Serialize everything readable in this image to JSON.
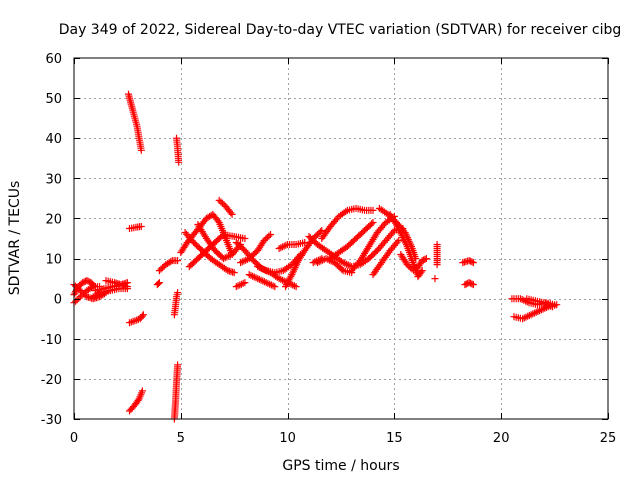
{
  "chart_data": {
    "type": "scatter",
    "title": "Day 349 of 2022, Sidereal Day-to-day VTEC variation (SDTVAR) for receiver cibg",
    "xlabel": "GPS time / hours",
    "ylabel": "SDTVAR / TECUs",
    "xlim": [
      0,
      25
    ],
    "ylim": [
      -30,
      60
    ],
    "xticks": [
      0,
      5,
      10,
      15,
      20,
      25
    ],
    "yticks": [
      -30,
      -20,
      -10,
      0,
      10,
      20,
      30,
      40,
      50,
      60
    ],
    "grid": true,
    "marker": "+",
    "colors": {
      "series": "#ff0000",
      "grid": "#a0a0a0",
      "axis": "#000000"
    },
    "series": [
      {
        "name": "SDTVAR",
        "segments": [
          [
            [
              0.0,
              1.0
            ],
            [
              0.2,
              3.0
            ],
            [
              0.4,
              4.0
            ],
            [
              0.6,
              4.5
            ],
            [
              0.8,
              4.0
            ],
            [
              1.0,
              3.0
            ]
          ],
          [
            [
              0.0,
              3.5
            ],
            [
              0.3,
              2.0
            ],
            [
              0.6,
              0.5
            ],
            [
              0.9,
              0.0
            ],
            [
              1.2,
              0.5
            ],
            [
              1.5,
              1.5
            ]
          ],
          [
            [
              0.0,
              -1.0
            ],
            [
              0.3,
              0.5
            ],
            [
              0.6,
              2.0
            ],
            [
              0.9,
              3.0
            ],
            [
              1.2,
              3.0
            ]
          ],
          [
            [
              1.0,
              2.0
            ],
            [
              1.4,
              2.5
            ],
            [
              1.8,
              3.0
            ],
            [
              2.2,
              3.5
            ],
            [
              2.5,
              3.0
            ]
          ],
          [
            [
              1.5,
              4.5
            ],
            [
              1.9,
              4.0
            ],
            [
              2.2,
              3.5
            ],
            [
              2.5,
              4.0
            ]
          ],
          [
            [
              0.9,
              0.5
            ],
            [
              1.3,
              1.5
            ],
            [
              1.7,
              2.0
            ],
            [
              2.1,
              2.5
            ],
            [
              2.5,
              2.5
            ]
          ],
          [
            [
              2.55,
              51.0
            ],
            [
              2.75,
              47.0
            ],
            [
              2.95,
              43.0
            ],
            [
              3.15,
              37.0
            ]
          ],
          [
            [
              2.6,
              17.5
            ],
            [
              2.9,
              17.8
            ],
            [
              3.15,
              18.0
            ]
          ],
          [
            [
              2.6,
              -6.0
            ],
            [
              2.85,
              -5.5
            ],
            [
              3.1,
              -5.0
            ],
            [
              3.25,
              -4.0
            ]
          ],
          [
            [
              2.6,
              -28.0
            ],
            [
              2.85,
              -26.5
            ],
            [
              3.05,
              -25.0
            ],
            [
              3.2,
              -23.0
            ]
          ],
          [
            [
              4.8,
              40.0
            ],
            [
              4.85,
              37.5
            ],
            [
              4.9,
              34.0
            ]
          ],
          [
            [
              4.7,
              -4.0
            ],
            [
              4.75,
              -2.0
            ],
            [
              4.8,
              0.5
            ],
            [
              4.85,
              1.5
            ]
          ],
          [
            [
              4.7,
              -30.0
            ],
            [
              4.75,
              -26.0
            ],
            [
              4.8,
              -21.0
            ],
            [
              4.85,
              -16.5
            ]
          ],
          [
            [
              4.0,
              7.0
            ],
            [
              4.3,
              8.5
            ],
            [
              4.6,
              9.5
            ],
            [
              4.85,
              9.5
            ]
          ],
          [
            [
              3.9,
              3.5
            ],
            [
              4.0,
              4.0
            ]
          ],
          [
            [
              5.0,
              11.5
            ],
            [
              5.3,
              14.0
            ],
            [
              5.6,
              16.0
            ],
            [
              5.9,
              18.0
            ],
            [
              6.2,
              20.0
            ],
            [
              6.5,
              21.0
            ],
            [
              6.8,
              19.0
            ],
            [
              7.1,
              15.0
            ],
            [
              7.4,
              11.0
            ]
          ],
          [
            [
              5.2,
              16.5
            ],
            [
              5.6,
              14.0
            ],
            [
              6.0,
              12.0
            ],
            [
              6.4,
              10.0
            ],
            [
              6.8,
              8.5
            ],
            [
              7.2,
              7.0
            ],
            [
              7.5,
              6.5
            ]
          ],
          [
            [
              5.8,
              18.5
            ],
            [
              6.2,
              15.0
            ],
            [
              6.6,
              12.0
            ],
            [
              7.0,
              10.0
            ],
            [
              7.4,
              11.0
            ],
            [
              7.8,
              13.5
            ]
          ],
          [
            [
              5.4,
              8.0
            ],
            [
              5.8,
              10.0
            ],
            [
              6.2,
              12.0
            ],
            [
              6.6,
              14.0
            ],
            [
              7.0,
              16.0
            ],
            [
              7.5,
              15.5
            ],
            [
              8.0,
              15.0
            ]
          ],
          [
            [
              6.8,
              24.5
            ],
            [
              7.1,
              23.0
            ],
            [
              7.4,
              21.0
            ]
          ],
          [
            [
              7.6,
              14.0
            ],
            [
              8.0,
              12.0
            ],
            [
              8.4,
              9.5
            ],
            [
              8.8,
              7.5
            ],
            [
              9.2,
              6.5
            ],
            [
              9.6,
              5.0
            ],
            [
              10.0,
              4.0
            ],
            [
              10.4,
              3.0
            ]
          ],
          [
            [
              7.8,
              9.0
            ],
            [
              8.2,
              10.0
            ],
            [
              8.6,
              12.0
            ],
            [
              8.9,
              14.5
            ],
            [
              9.2,
              16.0
            ]
          ],
          [
            [
              8.2,
              6.0
            ],
            [
              8.6,
              5.0
            ],
            [
              9.0,
              4.0
            ],
            [
              9.4,
              3.0
            ]
          ],
          [
            [
              7.6,
              3.0
            ],
            [
              8.0,
              4.0
            ]
          ],
          [
            [
              8.6,
              8.0
            ],
            [
              9.0,
              7.0
            ],
            [
              9.4,
              6.5
            ],
            [
              9.8,
              7.0
            ],
            [
              10.2,
              8.5
            ],
            [
              10.6,
              11.0
            ]
          ],
          [
            [
              9.6,
              12.5
            ],
            [
              10.0,
              13.5
            ],
            [
              10.4,
              13.5
            ],
            [
              10.8,
              14.0
            ]
          ],
          [
            [
              9.9,
              3.0
            ],
            [
              10.2,
              6.0
            ],
            [
              10.5,
              9.5
            ],
            [
              10.8,
              12.0
            ],
            [
              11.2,
              15.0
            ],
            [
              11.6,
              17.0
            ]
          ],
          [
            [
              11.2,
              9.0
            ],
            [
              11.6,
              10.0
            ]
          ],
          [
            [
              11.0,
              15.5
            ],
            [
              11.4,
              13.5
            ],
            [
              11.8,
              12.0
            ],
            [
              12.2,
              10.5
            ],
            [
              12.6,
              9.0
            ],
            [
              13.0,
              8.0
            ],
            [
              13.4,
              8.5
            ],
            [
              13.8,
              10.0
            ],
            [
              14.2,
              12.0
            ],
            [
              14.6,
              14.5
            ],
            [
              15.0,
              17.0
            ],
            [
              15.4,
              17.5
            ]
          ],
          [
            [
              11.4,
              9.0
            ],
            [
              11.8,
              10.0
            ],
            [
              12.2,
              9.0
            ],
            [
              12.6,
              7.0
            ],
            [
              13.0,
              6.5
            ]
          ],
          [
            [
              11.6,
              15.0
            ],
            [
              12.0,
              18.0
            ],
            [
              12.4,
              20.5
            ],
            [
              12.8,
              22.0
            ],
            [
              13.2,
              22.5
            ],
            [
              13.6,
              22.0
            ],
            [
              14.0,
              22.0
            ]
          ],
          [
            [
              12.0,
              10.0
            ],
            [
              12.4,
              11.5
            ],
            [
              12.8,
              13.0
            ],
            [
              13.2,
              15.0
            ],
            [
              13.6,
              17.0
            ],
            [
              14.0,
              19.0
            ]
          ],
          [
            [
              13.0,
              7.0
            ],
            [
              13.4,
              9.5
            ],
            [
              13.8,
              13.0
            ],
            [
              14.2,
              16.5
            ],
            [
              14.6,
              19.0
            ],
            [
              15.0,
              20.5
            ]
          ],
          [
            [
              14.0,
              6.0
            ],
            [
              14.4,
              9.0
            ],
            [
              14.8,
              12.0
            ],
            [
              15.2,
              14.5
            ]
          ],
          [
            [
              14.3,
              22.5
            ],
            [
              14.7,
              21.0
            ],
            [
              15.1,
              19.0
            ],
            [
              15.5,
              16.5
            ],
            [
              15.8,
              13.0
            ],
            [
              16.0,
              10.0
            ]
          ],
          [
            [
              14.8,
              21.0
            ],
            [
              15.2,
              17.5
            ],
            [
              15.6,
              13.0
            ],
            [
              15.9,
              8.5
            ],
            [
              16.1,
              6.0
            ]
          ],
          [
            [
              15.3,
              11.0
            ],
            [
              15.6,
              8.5
            ],
            [
              15.9,
              7.0
            ]
          ],
          [
            [
              16.0,
              7.0
            ],
            [
              16.3,
              9.5
            ],
            [
              16.5,
              10.0
            ]
          ],
          [
            [
              16.1,
              5.5
            ],
            [
              16.3,
              7.0
            ]
          ],
          [
            [
              17.0,
              8.5
            ],
            [
              17.0,
              13.5
            ]
          ],
          [
            [
              16.9,
              5.0
            ]
          ],
          [
            [
              18.2,
              9.0
            ],
            [
              18.5,
              9.5
            ],
            [
              18.7,
              9.0
            ]
          ],
          [
            [
              18.3,
              3.5
            ],
            [
              18.5,
              4.0
            ],
            [
              18.7,
              3.5
            ]
          ],
          [
            [
              20.5,
              0.0
            ],
            [
              20.9,
              0.0
            ],
            [
              21.3,
              -1.0
            ],
            [
              21.7,
              -1.5
            ],
            [
              22.1,
              -1.0
            ],
            [
              22.5,
              -1.5
            ]
          ],
          [
            [
              20.6,
              -4.5
            ],
            [
              21.0,
              -5.0
            ],
            [
              21.4,
              -4.0
            ],
            [
              21.8,
              -3.0
            ],
            [
              22.2,
              -2.0
            ],
            [
              22.6,
              -1.5
            ]
          ],
          [
            [
              21.2,
              0.0
            ],
            [
              21.6,
              -0.5
            ],
            [
              22.0,
              -1.0
            ],
            [
              22.4,
              -2.0
            ]
          ]
        ]
      }
    ]
  }
}
